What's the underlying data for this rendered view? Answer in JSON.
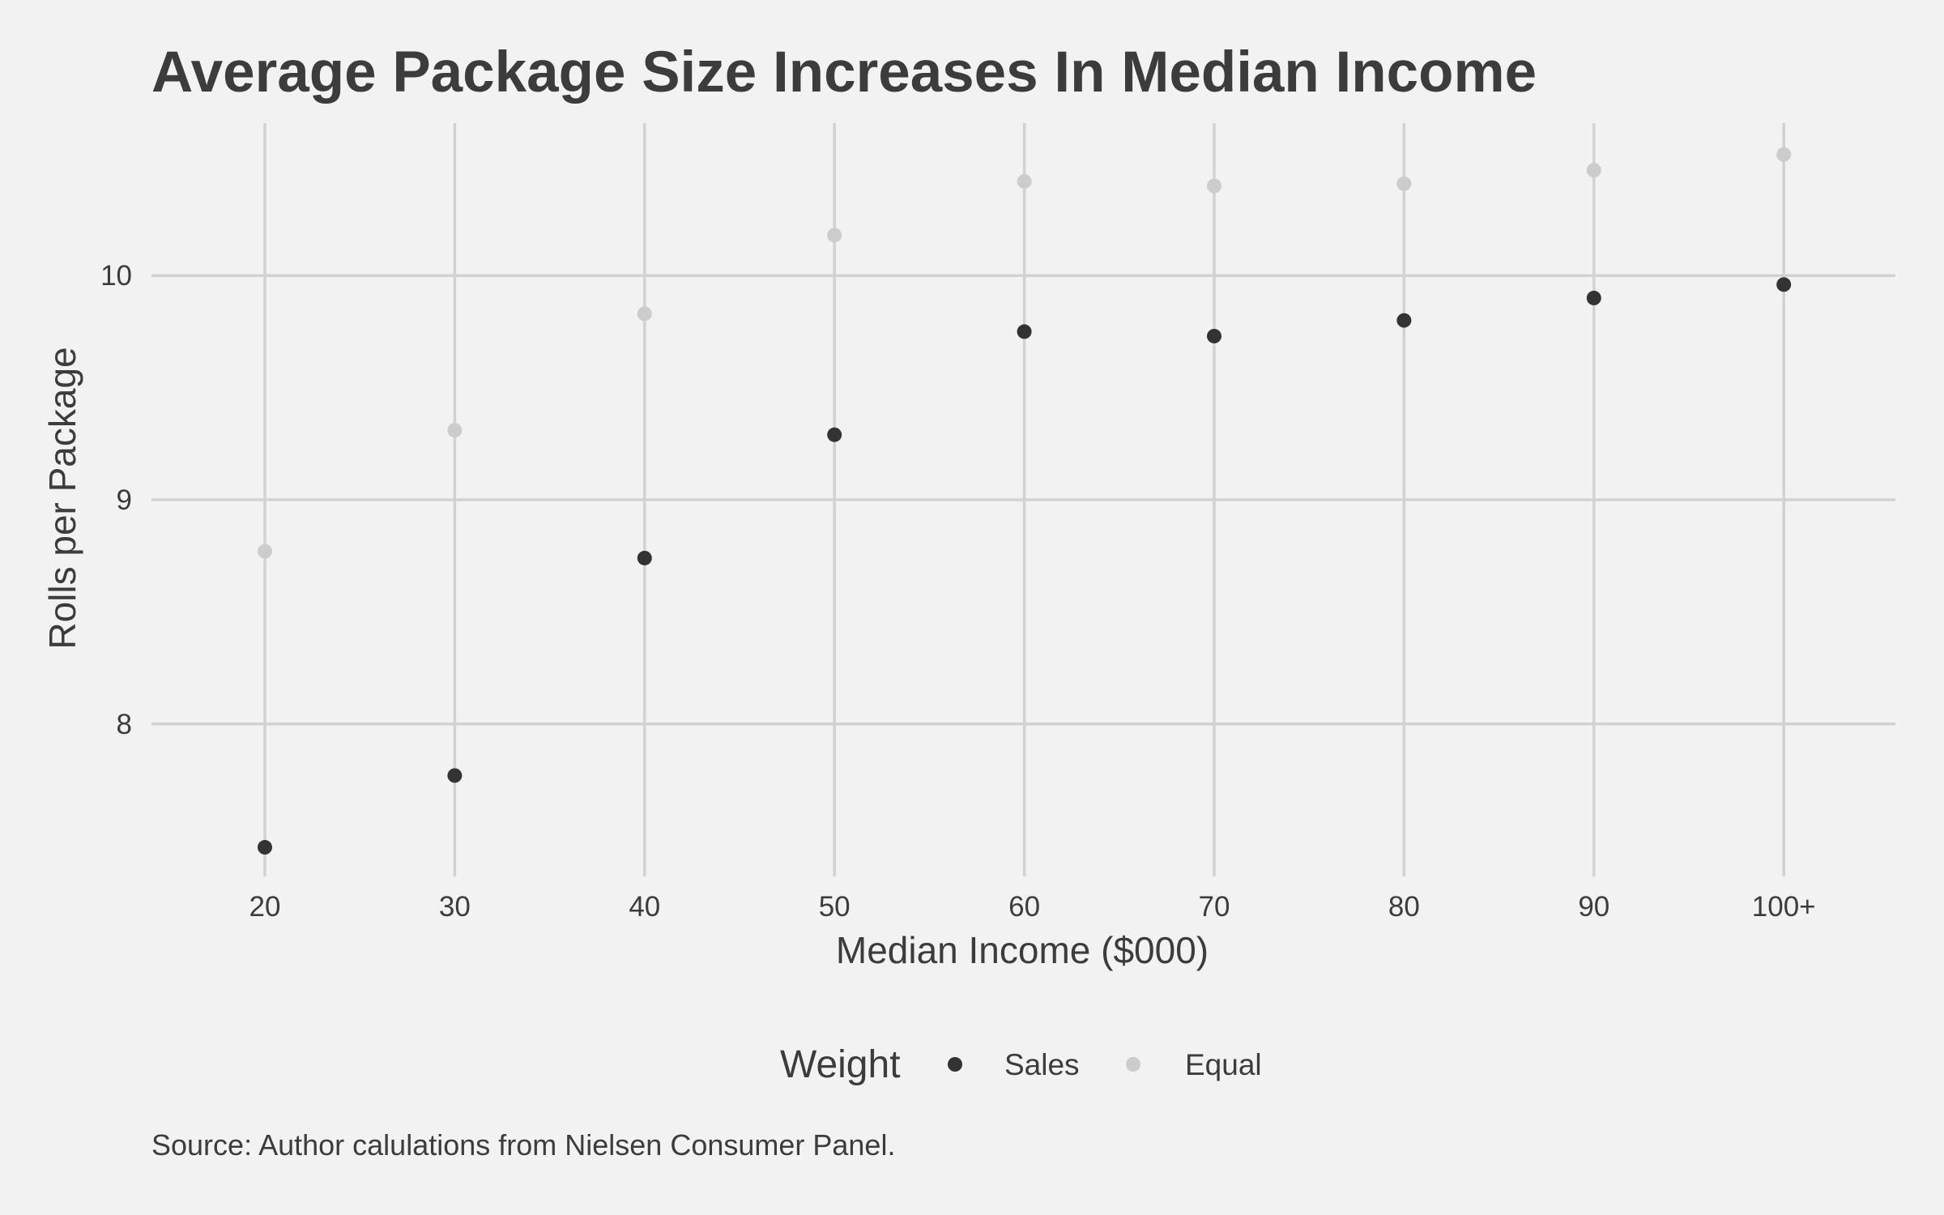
{
  "chart_data": {
    "type": "scatter",
    "title": "Average Package Size Increases In Median Income",
    "xlabel": "Median Income ($000)",
    "ylabel": "Rolls per Package",
    "caption": "Source: Author calulations from Nielsen Consumer Panel.",
    "categories": [
      "20",
      "30",
      "40",
      "50",
      "60",
      "70",
      "80",
      "90",
      "100+"
    ],
    "ylim": [
      7.32,
      10.68
    ],
    "yticks": [
      "8",
      "9",
      "10"
    ],
    "grid": true,
    "legend": {
      "title": "Weight",
      "position": "bottom"
    },
    "series": [
      {
        "name": "Sales",
        "color": "#333333",
        "values": [
          7.45,
          7.77,
          8.74,
          9.29,
          9.75,
          9.73,
          9.8,
          9.9,
          9.96
        ]
      },
      {
        "name": "Equal",
        "color": "#cccccc",
        "values": [
          8.77,
          9.31,
          9.83,
          10.18,
          10.42,
          10.4,
          10.41,
          10.47,
          10.54
        ]
      }
    ]
  }
}
